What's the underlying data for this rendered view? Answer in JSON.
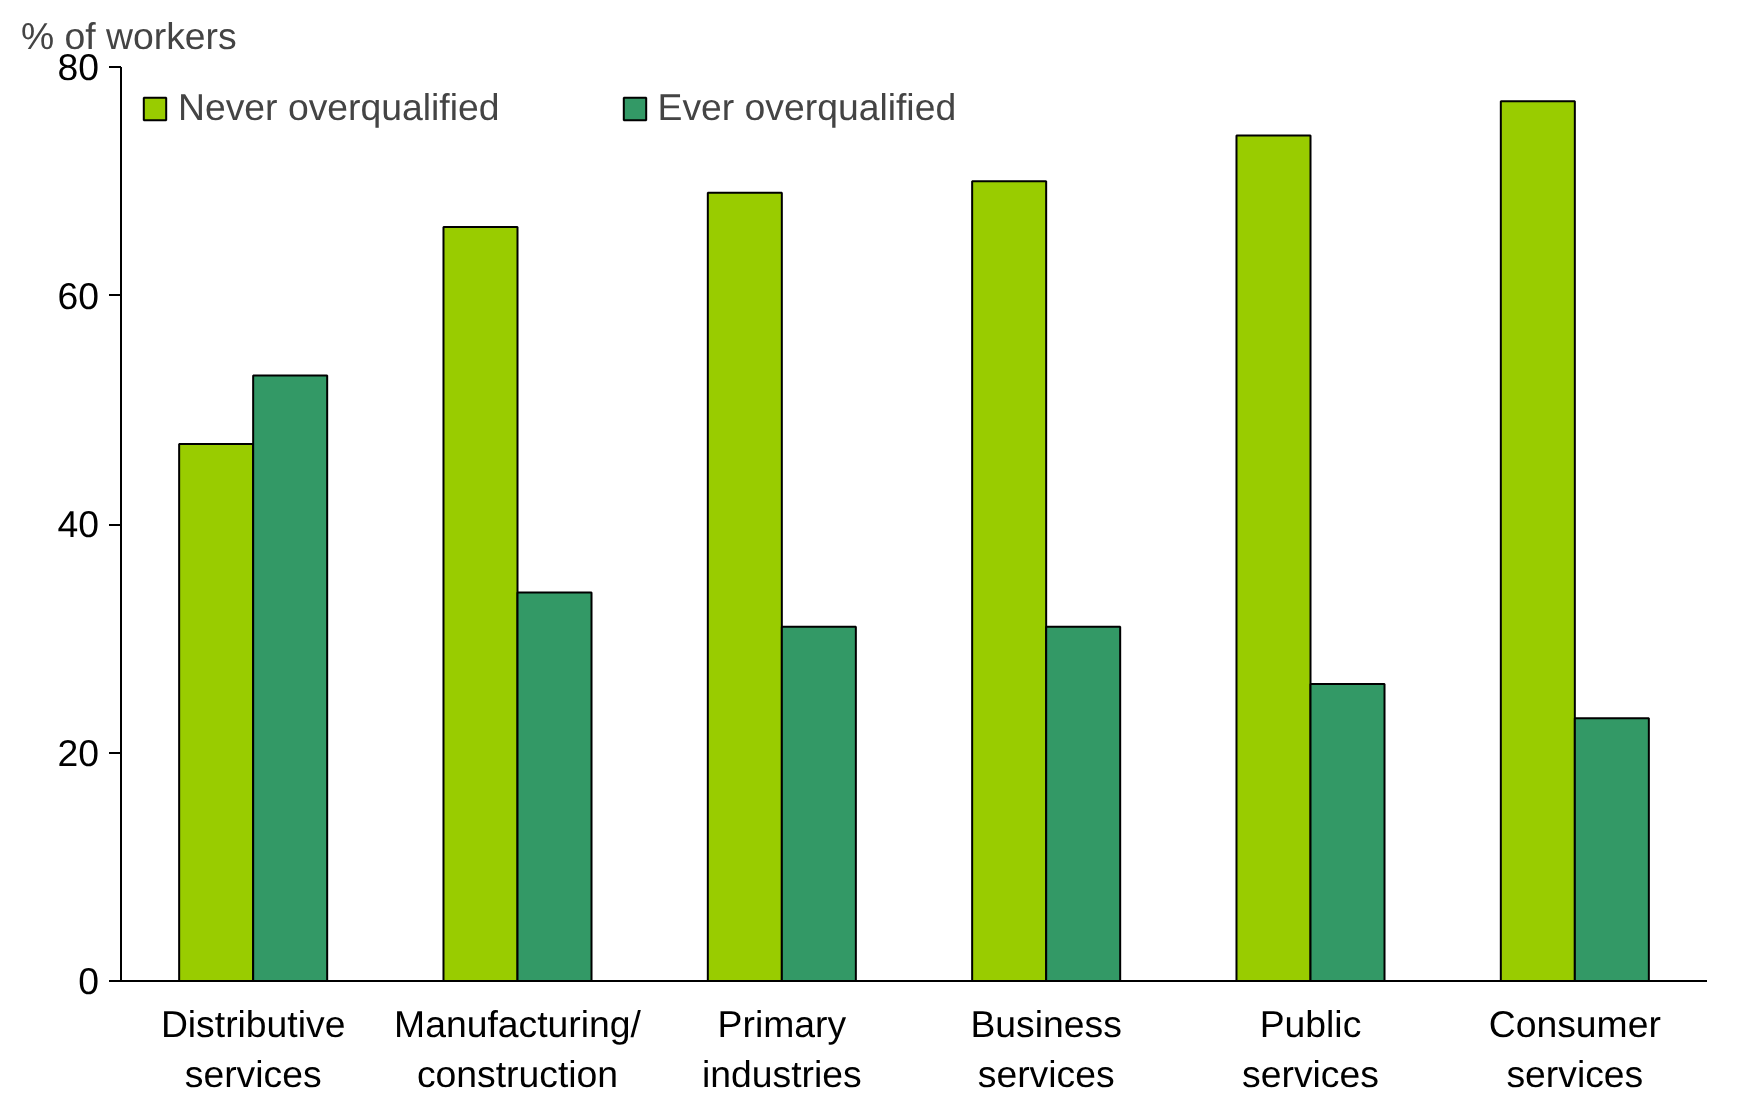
{
  "chart_data": {
    "type": "bar",
    "ylabel": "% of workers",
    "categories": [
      "Distributive\nservices",
      "Manufacturing/\nconstruction",
      "Primary\nindustries",
      "Business\nservices",
      "Public\nservices",
      "Consumer\nservices"
    ],
    "series": [
      {
        "name": "Never overqualified",
        "color": "#99cc00",
        "values": [
          47,
          66,
          69,
          70,
          74,
          77
        ]
      },
      {
        "name": "Ever overqualified",
        "color": "#339966",
        "values": [
          53,
          34,
          31,
          31,
          26,
          23
        ]
      }
    ],
    "ylim": [
      0,
      80
    ],
    "yticks": [
      0,
      20,
      40,
      60,
      80
    ],
    "grid": false,
    "legend": "top left"
  }
}
